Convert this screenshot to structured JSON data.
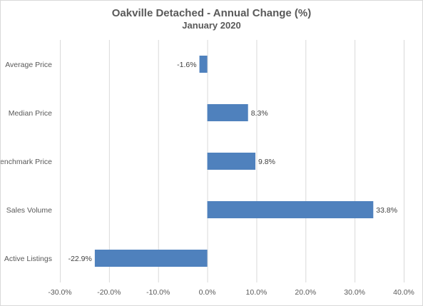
{
  "chart_data": {
    "type": "bar",
    "orientation": "horizontal",
    "title": "Oakville Detached - Annual Change (%)",
    "subtitle": "January 2020",
    "categories": [
      "Average Price",
      "Median Price",
      "Benchmark Price",
      "Sales Volume",
      "Active Listings"
    ],
    "values": [
      -1.6,
      8.3,
      9.8,
      33.8,
      -22.9
    ],
    "data_labels": [
      "-1.6%",
      "8.3%",
      "9.8%",
      "33.8%",
      "-22.9%"
    ],
    "xlim": [
      -30,
      40
    ],
    "x_ticks": [
      -30,
      -20,
      -10,
      0,
      10,
      20,
      30,
      40
    ],
    "x_tick_labels": [
      "-30.0%",
      "-20.0%",
      "-10.0%",
      "0.0%",
      "10.0%",
      "20.0%",
      "30.0%",
      "40.0%"
    ],
    "grid": "vertical",
    "legend": "none",
    "bar_color": "#4f81bd",
    "grid_color": "#d9d9d9"
  }
}
